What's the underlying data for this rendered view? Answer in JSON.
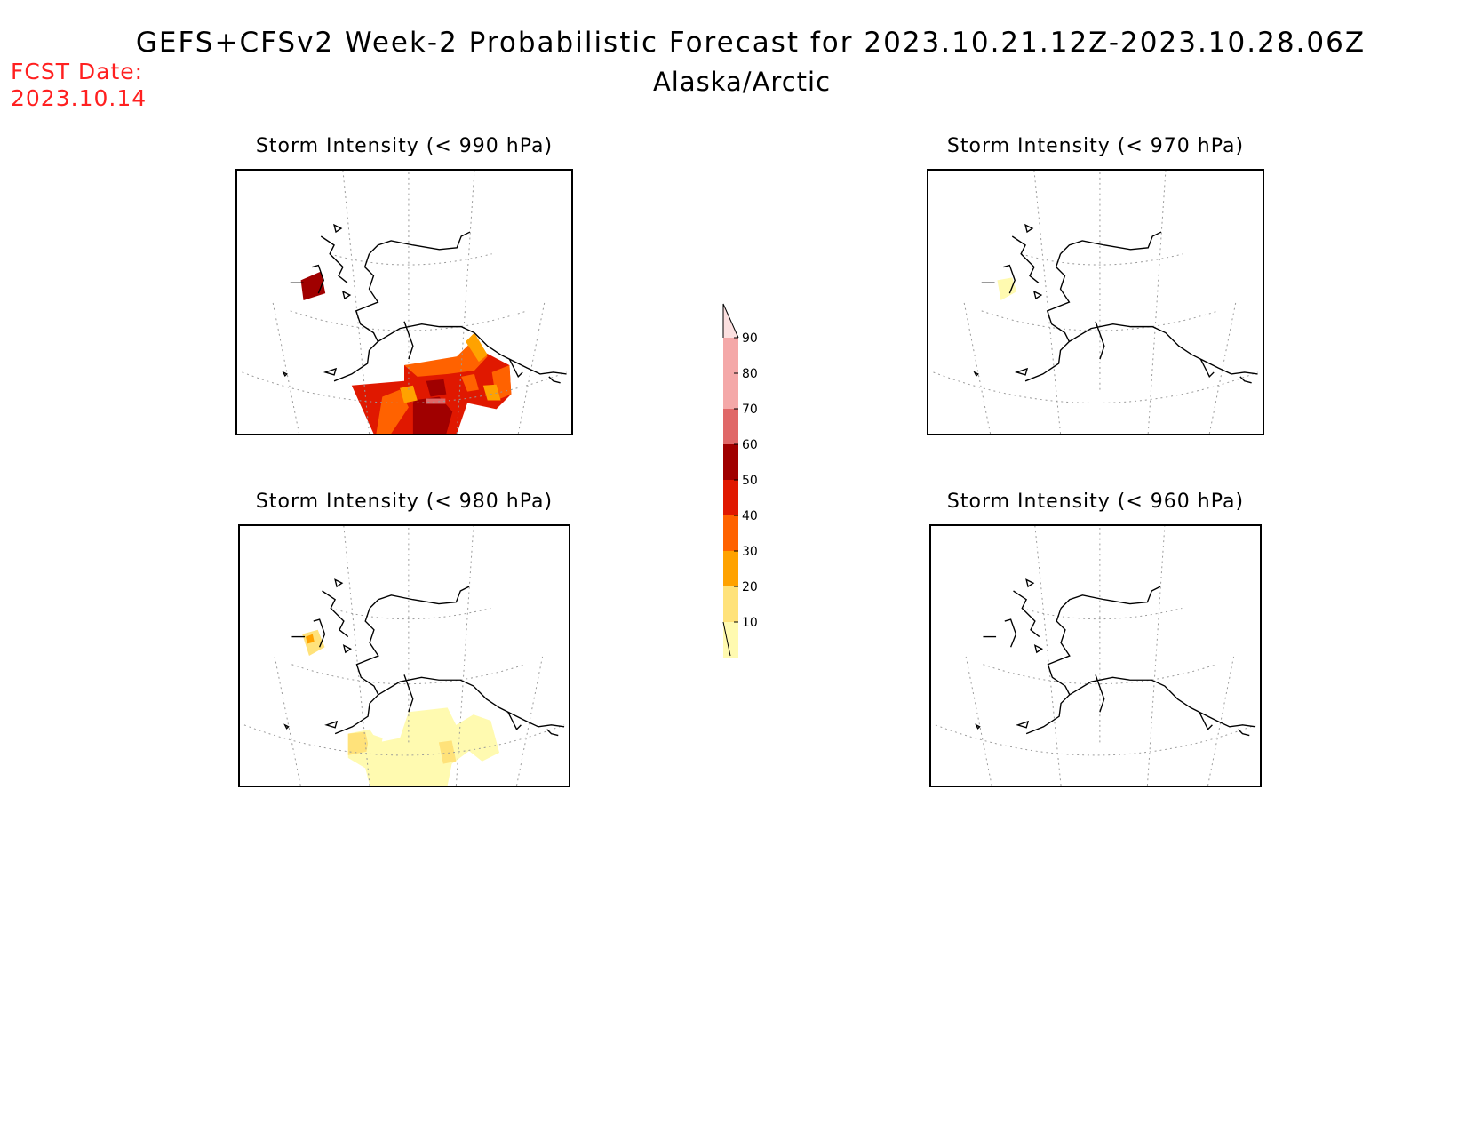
{
  "header": {
    "title": "GEFS+CFSv2 Week-2 Probabilistic Forecast for 2023.10.21.12Z-2023.10.28.06Z",
    "subtitle": "Alaska/Arctic",
    "fcst_label": "FCST Date:",
    "fcst_date": "2023.10.14"
  },
  "panels": [
    {
      "id": "p990",
      "title": "Storm Intensity (< 990 hPa)",
      "threshold_hPa": 990
    },
    {
      "id": "p970",
      "title": "Storm Intensity (< 970 hPa)",
      "threshold_hPa": 970
    },
    {
      "id": "p980",
      "title": "Storm Intensity (< 980 hPa)",
      "threshold_hPa": 980
    },
    {
      "id": "p960",
      "title": "Storm Intensity (< 960 hPa)",
      "threshold_hPa": 960
    }
  ],
  "colorbar": {
    "levels": [
      "10",
      "20",
      "30",
      "40",
      "50",
      "60",
      "70",
      "80",
      "90"
    ],
    "colors": [
      "#fffab0",
      "#ffe27a",
      "#ffa200",
      "#ff6200",
      "#e01800",
      "#a00000",
      "#e06868",
      "#f4a8a8",
      "#fce0e0"
    ]
  }
}
